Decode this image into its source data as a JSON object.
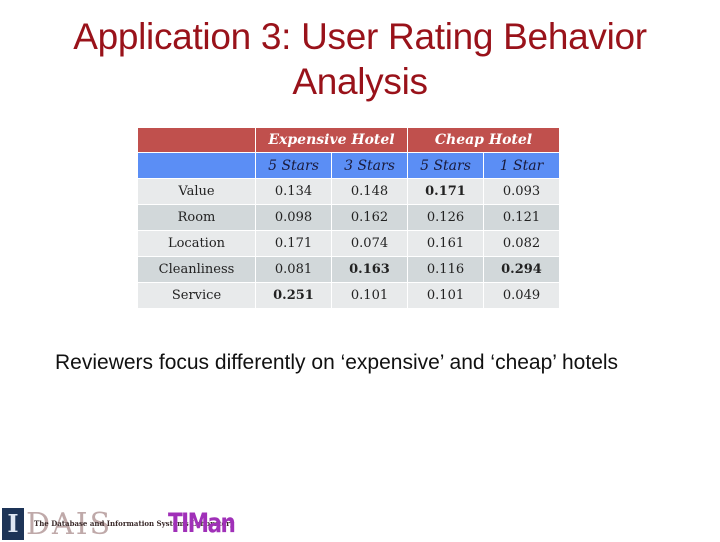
{
  "slide": {
    "title_line1": "Application 3: User Rating Behavior",
    "title_line2": "Analysis",
    "note": "Reviewers focus differently on ‘expensive’ and ‘cheap’ hotels",
    "colors": {
      "title": "#99121a",
      "group_header_bg": "#c0504d",
      "sub_header_bg": "#5b8ef5",
      "row_odd_bg": "#e8eaeb",
      "row_even_bg": "#d2d8da"
    }
  },
  "table": {
    "group_headers": [
      "Expensive Hotel",
      "Cheap Hotel"
    ],
    "sub_headers": [
      "5 Stars",
      "3 Stars",
      "5 Stars",
      "1 Star"
    ],
    "rows": [
      {
        "label": "Value",
        "values": [
          "0.134",
          "0.148",
          "0.171",
          "0.093"
        ],
        "bold": [
          false,
          false,
          true,
          false
        ]
      },
      {
        "label": "Room",
        "values": [
          "0.098",
          "0.162",
          "0.126",
          "0.121"
        ],
        "bold": [
          false,
          false,
          false,
          false
        ]
      },
      {
        "label": "Location",
        "values": [
          "0.171",
          "0.074",
          "0.161",
          "0.082"
        ],
        "bold": [
          false,
          false,
          false,
          false
        ]
      },
      {
        "label": "Cleanliness",
        "values": [
          "0.081",
          "0.163",
          "0.116",
          "0.294"
        ],
        "bold": [
          false,
          true,
          false,
          true
        ]
      },
      {
        "label": "Service",
        "values": [
          "0.251",
          "0.101",
          "0.101",
          "0.049"
        ],
        "bold": [
          true,
          false,
          false,
          false
        ]
      }
    ]
  },
  "logos": {
    "illinois": "I",
    "dais": "DAIS",
    "dais_subtitle": "The Database and Information Systems Laboratory",
    "timan": "TIMan"
  }
}
